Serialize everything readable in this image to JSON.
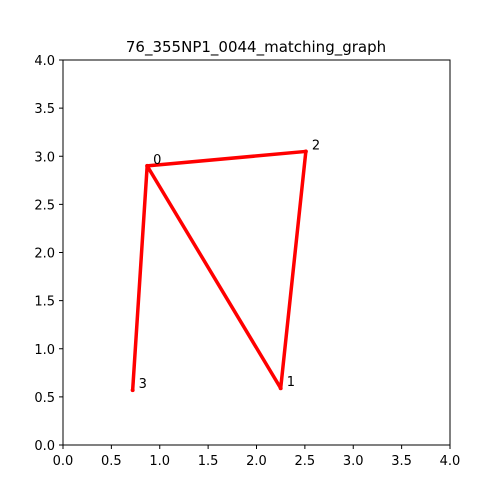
{
  "chart_data": {
    "type": "line",
    "title": "76_355NP1_0044_matching_graph",
    "xlabel": "",
    "ylabel": "",
    "xlim": [
      0.0,
      4.0
    ],
    "ylim": [
      0.0,
      4.0
    ],
    "xticks": [
      "0.0",
      "0.5",
      "1.0",
      "1.5",
      "2.0",
      "2.5",
      "3.0",
      "3.5",
      "4.0"
    ],
    "yticks": [
      "0.0",
      "0.5",
      "1.0",
      "1.5",
      "2.0",
      "2.5",
      "3.0",
      "3.5",
      "4.0"
    ],
    "grid": false,
    "edge_color": "#ff0000",
    "nodes": [
      {
        "id": "0",
        "x": 0.87,
        "y": 2.9
      },
      {
        "id": "1",
        "x": 2.25,
        "y": 0.59
      },
      {
        "id": "2",
        "x": 2.51,
        "y": 3.05
      },
      {
        "id": "3",
        "x": 0.72,
        "y": 0.57
      }
    ],
    "edges": [
      [
        "0",
        "2"
      ],
      [
        "2",
        "1"
      ],
      [
        "1",
        "0"
      ],
      [
        "0",
        "3"
      ]
    ]
  }
}
